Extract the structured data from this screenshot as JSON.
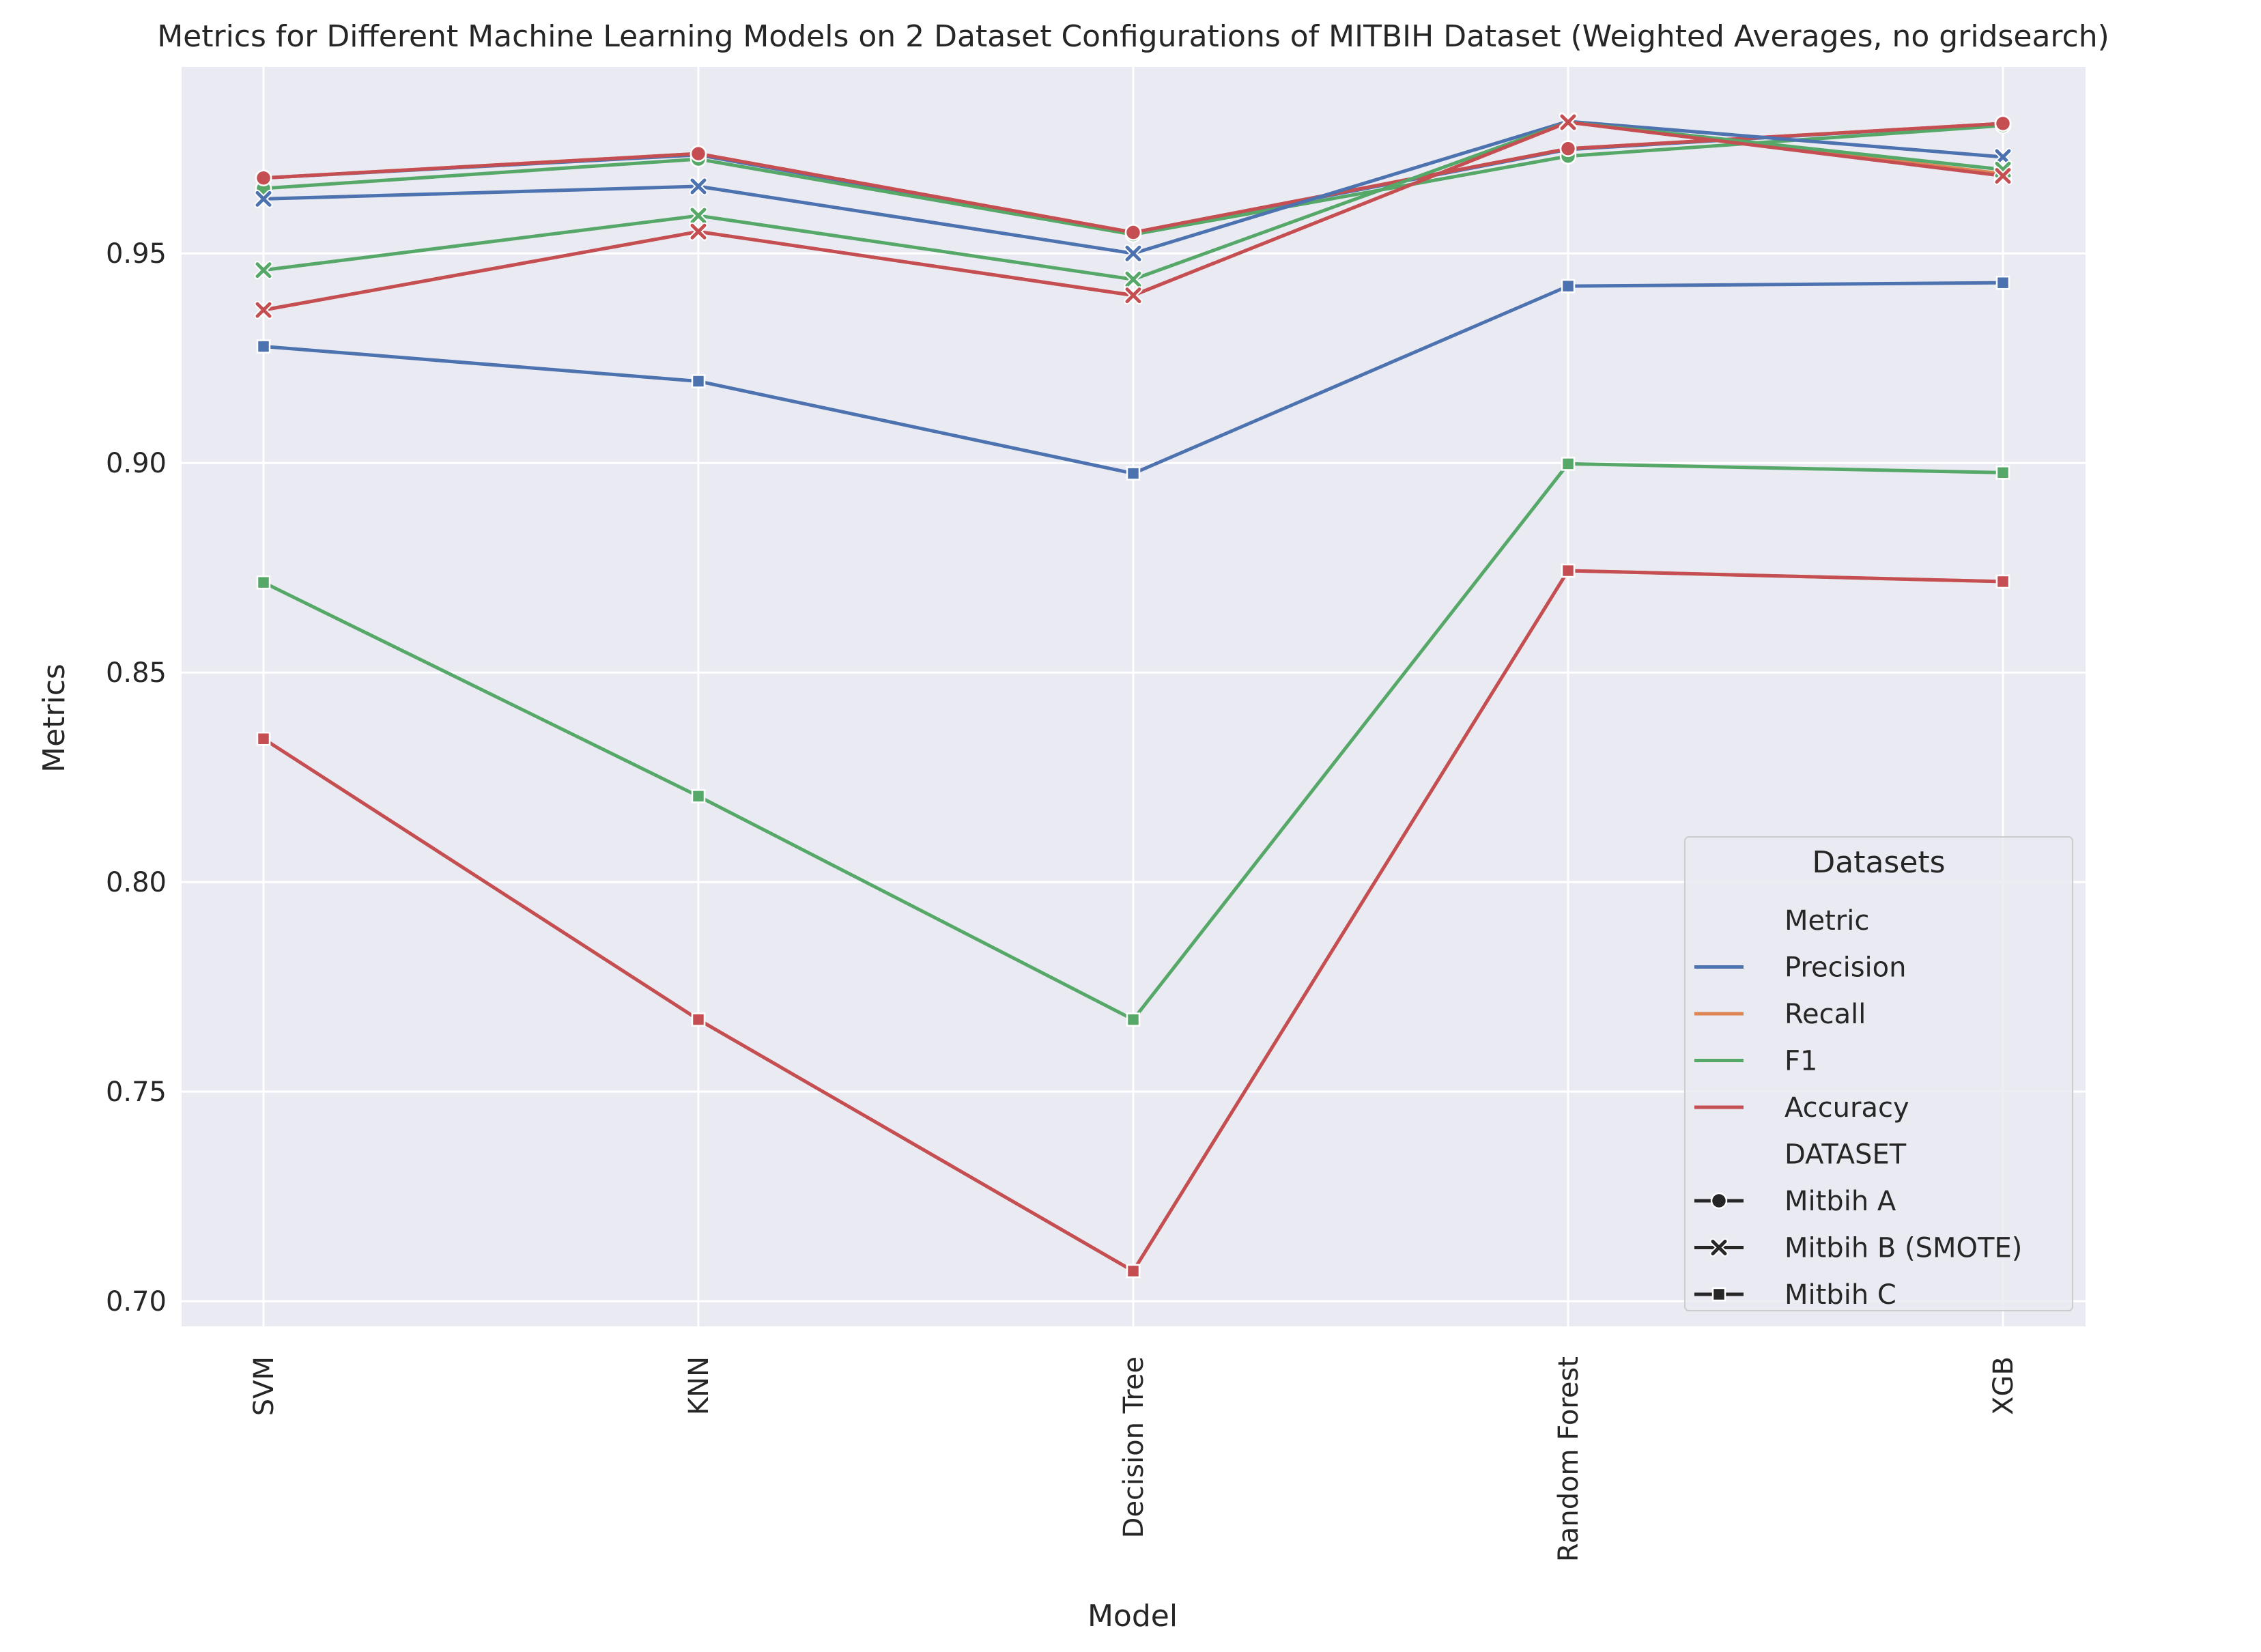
{
  "chart_data": {
    "type": "line",
    "title": "Metrics for Different Machine Learning Models on 2 Dataset Configurations of MITBIH Dataset (Weighted Averages, no gridsearch)",
    "xlabel": "Model",
    "ylabel": "Metrics",
    "categories": [
      "SVM",
      "KNN",
      "Decision Tree",
      "Random Forest",
      "XGB"
    ],
    "ylim": [
      0.694,
      0.9945
    ],
    "yticks": [
      0.7,
      0.75,
      0.8,
      0.85,
      0.9,
      0.95
    ],
    "ytick_labels": [
      "0.70",
      "0.75",
      "0.80",
      "0.85",
      "0.90",
      "0.95"
    ],
    "grid": true,
    "legend": {
      "title": "Datasets",
      "placement": "lower-right",
      "metric_header": "Metric",
      "dataset_header": "DATASET",
      "metrics": [
        {
          "label": "Precision",
          "color": "#4c72b0"
        },
        {
          "label": "Recall",
          "color": "#dd8452"
        },
        {
          "label": "F1",
          "color": "#55a868"
        },
        {
          "label": "Accuracy",
          "color": "#c44e52"
        }
      ],
      "datasets": [
        {
          "label": "Mitbih A",
          "marker": "circle"
        },
        {
          "label": "Mitbih B (SMOTE)",
          "marker": "x"
        },
        {
          "label": "Mitbih C",
          "marker": "square"
        }
      ]
    },
    "series": [
      {
        "metric": "Precision",
        "dataset": "Mitbih A",
        "values": [
          0.968,
          0.9735,
          0.9548,
          0.9748,
          0.981
        ]
      },
      {
        "metric": "Recall",
        "dataset": "Mitbih A",
        "values": [
          0.968,
          0.9738,
          0.955,
          0.975,
          0.981
        ]
      },
      {
        "metric": "F1",
        "dataset": "Mitbih A",
        "values": [
          0.9655,
          0.9725,
          0.9545,
          0.9732,
          0.9805
        ]
      },
      {
        "metric": "Accuracy",
        "dataset": "Mitbih A",
        "values": [
          0.968,
          0.9738,
          0.955,
          0.975,
          0.981
        ]
      },
      {
        "metric": "Precision",
        "dataset": "Mitbih B (SMOTE)",
        "values": [
          0.963,
          0.966,
          0.95,
          0.9815,
          0.973
        ]
      },
      {
        "metric": "Recall",
        "dataset": "Mitbih B (SMOTE)",
        "values": [
          0.9365,
          0.9552,
          0.94,
          0.9813,
          0.969
        ]
      },
      {
        "metric": "F1",
        "dataset": "Mitbih B (SMOTE)",
        "values": [
          0.946,
          0.959,
          0.9438,
          0.9813,
          0.97
        ]
      },
      {
        "metric": "Accuracy",
        "dataset": "Mitbih B (SMOTE)",
        "values": [
          0.9365,
          0.9552,
          0.94,
          0.9813,
          0.9685
        ]
      },
      {
        "metric": "Precision",
        "dataset": "Mitbih C",
        "values": [
          0.9278,
          0.9195,
          0.8975,
          0.9422,
          0.943
        ]
      },
      {
        "metric": "Recall",
        "dataset": "Mitbih C",
        "values": [
          0.8342,
          0.7672,
          0.7072,
          0.8743,
          0.8717
        ]
      },
      {
        "metric": "F1",
        "dataset": "Mitbih C",
        "values": [
          0.8715,
          0.8205,
          0.7672,
          0.8998,
          0.8977
        ]
      },
      {
        "metric": "Accuracy",
        "dataset": "Mitbih C",
        "values": [
          0.8342,
          0.7672,
          0.7072,
          0.8743,
          0.8717
        ]
      }
    ]
  }
}
